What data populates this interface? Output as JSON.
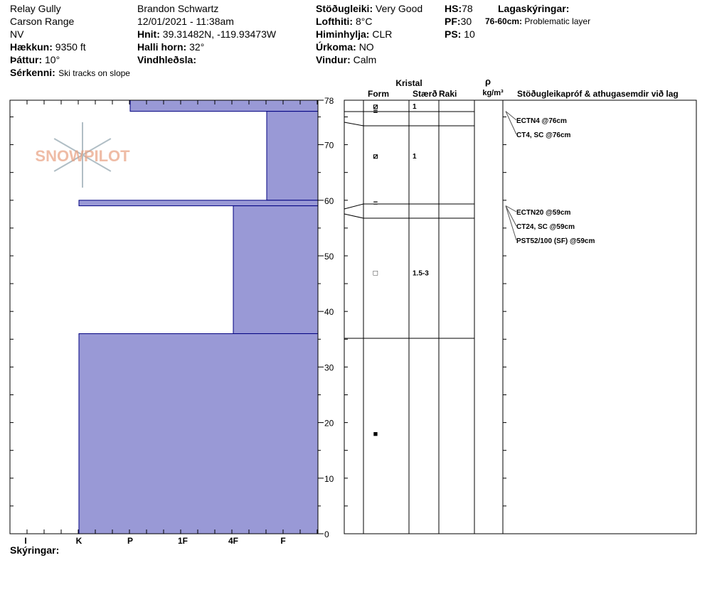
{
  "header": {
    "location": "Relay Gully",
    "range": "Carson Range",
    "state": "NV",
    "elevation_label": "Hækkun:",
    "elevation": "9350 ft",
    "aspect_label": "Þáttur:",
    "aspect": "10°",
    "features_label": "Sérkenni:",
    "features": "Ski tracks on slope",
    "observer": "Brandon Schwartz",
    "datetime": "12/01/2021 - 11:38am",
    "coords_label": "Hnit:",
    "coords": "39.31482N, -119.93473W",
    "slope_label": "Halli horn:",
    "slope": "32°",
    "wind_loading_label": "Vindhleðsla:",
    "wind_loading": "",
    "stability_label": "Stöðugleiki:",
    "stability": "Very Good",
    "air_temp_label": "Lofthiti:",
    "air_temp": "8°C",
    "sky_label": "Himinhylja:",
    "sky": "CLR",
    "precip_label": "Úrkoma:",
    "precip": "NO",
    "wind_label": "Vindur:",
    "wind": "Calm",
    "hs_label": "HS:",
    "hs": "78",
    "pf_label": "PF:",
    "pf": "30",
    "ps_label": "PS:",
    "ps": "10",
    "layer_notes_label": "Lagaskýringar:",
    "layer_notes_range": "76-60cm:",
    "layer_notes_text": "Problematic layer"
  },
  "logo": {
    "text": "SNOWPILOT",
    "colors": {
      "logo": "#e8a080",
      "flake": "#b0bec5"
    }
  },
  "footer": {
    "notes_label": "Skýringar:"
  },
  "colors": {
    "hardness_fill": "#9999d6",
    "hardness_stroke": "#000080",
    "grid": "#000000"
  },
  "chart_data": {
    "type": "bar",
    "title": "",
    "y_ticks": [
      "0",
      "10",
      "20",
      "30",
      "40",
      "50",
      "60",
      "70",
      "78"
    ],
    "x_ticks": [
      "I",
      "K",
      "P",
      "1F",
      "4F",
      "F"
    ],
    "ylim": [
      0,
      78
    ],
    "layers": [
      {
        "bottom": 76,
        "top": 78,
        "hardness": "P"
      },
      {
        "bottom": 60,
        "top": 76,
        "hardness": "4F+"
      },
      {
        "bottom": 59,
        "top": 60,
        "hardness": "K"
      },
      {
        "bottom": 36,
        "top": 59,
        "hardness": "4F"
      },
      {
        "bottom": 0,
        "top": 36,
        "hardness": "K"
      }
    ],
    "grain_headers": {
      "crystal": "Kristal",
      "form": "Form",
      "size": "Stærð",
      "moisture": "Raki",
      "rho": "ρ",
      "density_unit": "kg/m³",
      "tests_header": "Stöðugleikapróf & athugasemdir við lag"
    },
    "grain_layers": [
      {
        "depth_cm": 77,
        "form": "⧄",
        "size": "1"
      },
      {
        "depth_cm": 76,
        "form": "="
      },
      {
        "depth_cm": 68,
        "form": "⧄",
        "size": "1"
      },
      {
        "depth_cm": 59.5,
        "form": "="
      },
      {
        "depth_cm": 47,
        "form": "□",
        "size": "1.5-3"
      },
      {
        "depth_cm": 18,
        "form": "■"
      }
    ],
    "tests": [
      {
        "depth_cm": 76,
        "text": "ECTN4 @76cm"
      },
      {
        "depth_cm": 76,
        "text": "CT4, SC @76cm"
      },
      {
        "depth_cm": 59,
        "text": "ECTN20 @59cm"
      },
      {
        "depth_cm": 59,
        "text": "CT24, SC @59cm"
      },
      {
        "depth_cm": 59,
        "text": "PST52/100 (SF) @59cm"
      }
    ]
  }
}
